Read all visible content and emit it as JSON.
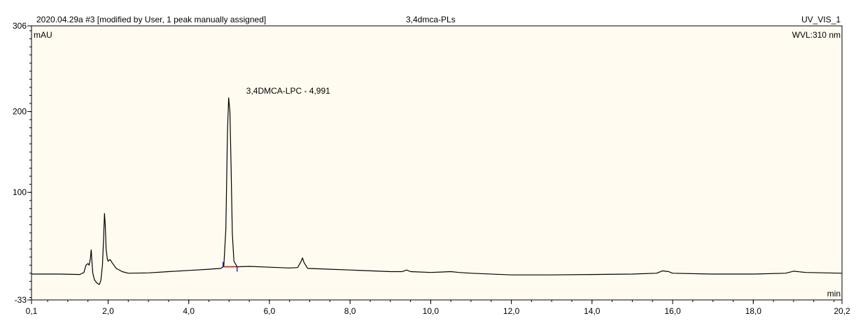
{
  "header": {
    "sample": "2020.04.29a #3 [modified by User, 1 peak manually assigned]",
    "sequence": "3,4dmca-PLs",
    "channel": "UV_VIS_1"
  },
  "chart_data": {
    "type": "line",
    "title": "",
    "xlabel": "min",
    "ylabel": "mAU",
    "wavelength_label": "WVL:310 nm",
    "xlim": [
      0.1,
      20.2
    ],
    "ylim": [
      -33,
      306
    ],
    "x_ticks": [
      0.1,
      2.0,
      4.0,
      6.0,
      8.0,
      10.0,
      12.0,
      14.0,
      16.0,
      18.0,
      20.2
    ],
    "x_tick_labels": [
      "0,1",
      "2,0",
      "4,0",
      "6,0",
      "8,0",
      "10,0",
      "12,0",
      "14,0",
      "16,0",
      "18,0",
      "20,2"
    ],
    "y_ticks": [
      -33,
      100,
      200,
      306
    ],
    "y_tick_labels": [
      "-33",
      "100",
      "200",
      "306"
    ],
    "plot_background": "#fffbf0",
    "line_color": "#000000",
    "peak_annotation": {
      "label": "3,4DMCA-LPC - 4,991",
      "x": 4.991,
      "y": 217
    },
    "baseline_marker": {
      "x_start": 4.85,
      "x_end": 5.2,
      "y_start": 8,
      "y_end": 8,
      "color": "#ff0000"
    },
    "series": [
      {
        "values": [
          [
            0.1,
            -1
          ],
          [
            0.8,
            -1
          ],
          [
            1.3,
            -1.5
          ],
          [
            1.4,
            1
          ],
          [
            1.45,
            10
          ],
          [
            1.5,
            12
          ],
          [
            1.53,
            10
          ],
          [
            1.56,
            18
          ],
          [
            1.58,
            29
          ],
          [
            1.6,
            14
          ],
          [
            1.62,
            0
          ],
          [
            1.66,
            -8
          ],
          [
            1.72,
            -12
          ],
          [
            1.78,
            -14
          ],
          [
            1.82,
            -9
          ],
          [
            1.86,
            10
          ],
          [
            1.89,
            45
          ],
          [
            1.91,
            74
          ],
          [
            1.93,
            60
          ],
          [
            1.95,
            30
          ],
          [
            1.98,
            18
          ],
          [
            2.0,
            15
          ],
          [
            2.05,
            17
          ],
          [
            2.1,
            13
          ],
          [
            2.2,
            6
          ],
          [
            2.35,
            2
          ],
          [
            2.5,
            0
          ],
          [
            3.0,
            0.5
          ],
          [
            3.5,
            2
          ],
          [
            4.0,
            3.5
          ],
          [
            4.5,
            5
          ],
          [
            4.8,
            6
          ],
          [
            4.87,
            9
          ],
          [
            4.92,
            55
          ],
          [
            4.96,
            175
          ],
          [
            4.99,
            217
          ],
          [
            5.02,
            200
          ],
          [
            5.05,
            130
          ],
          [
            5.08,
            50
          ],
          [
            5.12,
            15
          ],
          [
            5.2,
            8
          ],
          [
            5.5,
            8.5
          ],
          [
            6.0,
            7.5
          ],
          [
            6.5,
            6.5
          ],
          [
            6.7,
            7
          ],
          [
            6.78,
            14
          ],
          [
            6.82,
            19
          ],
          [
            6.86,
            13
          ],
          [
            6.95,
            6
          ],
          [
            7.5,
            5
          ],
          [
            8.0,
            4
          ],
          [
            9.0,
            2
          ],
          [
            9.3,
            2
          ],
          [
            9.4,
            4
          ],
          [
            9.5,
            2
          ],
          [
            10.0,
            1
          ],
          [
            10.5,
            2
          ],
          [
            10.7,
            1
          ],
          [
            11.0,
            0
          ],
          [
            12.0,
            -2
          ],
          [
            13.0,
            -2
          ],
          [
            14.0,
            -1.5
          ],
          [
            15.0,
            -1
          ],
          [
            15.6,
            0
          ],
          [
            15.75,
            3
          ],
          [
            15.9,
            2
          ],
          [
            16.0,
            0
          ],
          [
            17.0,
            -1
          ],
          [
            18.0,
            -1
          ],
          [
            18.8,
            0
          ],
          [
            19.0,
            2.5
          ],
          [
            19.3,
            1
          ],
          [
            20.2,
            0
          ]
        ]
      }
    ]
  }
}
